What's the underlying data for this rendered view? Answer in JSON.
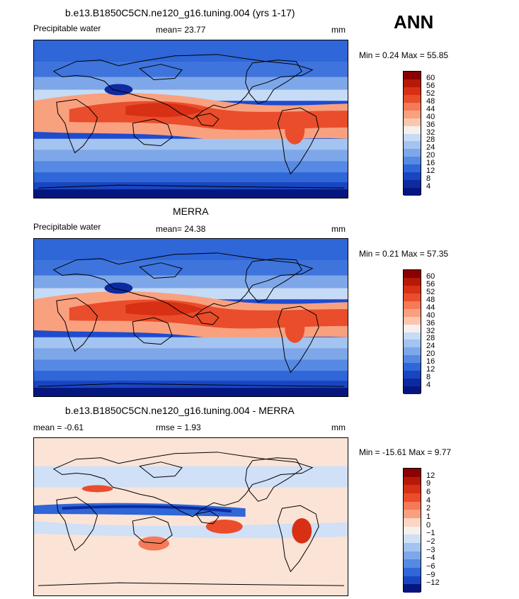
{
  "annual_label": "ANN",
  "panels": [
    {
      "title": "b.e13.B1850C5CN.ne120_g16.tuning.004 (yrs 1-17)",
      "left_label": "Precipitable water",
      "stat1": "mean=   23.77",
      "units": "mm",
      "minmax": "Min =    0.24  Max =   55.85",
      "ticks": [
        "60",
        "56",
        "52",
        "48",
        "44",
        "40",
        "36",
        "32",
        "28",
        "24",
        "20",
        "16",
        "12",
        "8",
        "4"
      ],
      "colors": [
        "#8b0000",
        "#b51a06",
        "#d73014",
        "#ea4d2b",
        "#f57a57",
        "#f9a07f",
        "#fcc6ae",
        "#f5f0ec",
        "#c6dbf5",
        "#a3c3f0",
        "#7ea7ea",
        "#5689e3",
        "#2f66d8",
        "#1946c0",
        "#0d2aa0",
        "#061680"
      ]
    },
    {
      "title": "MERRA",
      "left_label": "Precipitable water",
      "stat1": "mean=   24.38",
      "units": "mm",
      "minmax": "Min =    0.21  Max =   57.35",
      "ticks": [
        "60",
        "56",
        "52",
        "48",
        "44",
        "40",
        "36",
        "32",
        "28",
        "24",
        "20",
        "16",
        "12",
        "8",
        "4"
      ],
      "colors": [
        "#8b0000",
        "#b51a06",
        "#d73014",
        "#ea4d2b",
        "#f57a57",
        "#f9a07f",
        "#fcc6ae",
        "#f5f0ec",
        "#c6dbf5",
        "#a3c3f0",
        "#7ea7ea",
        "#5689e3",
        "#2f66d8",
        "#1946c0",
        "#0d2aa0",
        "#061680"
      ]
    },
    {
      "title": "b.e13.B1850C5CN.ne120_g16.tuning.004 - MERRA",
      "left_label": "mean =   -0.61",
      "stat1": "rmse =     1.93",
      "units": "mm",
      "minmax": "Min = -15.61  Max =    9.77",
      "ticks": [
        "12",
        "9",
        "6",
        "4",
        "2",
        "1",
        "0",
        "−1",
        "−2",
        "−3",
        "−4",
        "−6",
        "−9",
        "−12"
      ],
      "colors": [
        "#8b0000",
        "#b51a06",
        "#d73014",
        "#ea4d2b",
        "#f57a57",
        "#f9a07f",
        "#fcd6c4",
        "#f5f0ec",
        "#cfe0f7",
        "#a3c3f0",
        "#7ea7ea",
        "#5689e3",
        "#2f66d8",
        "#1946c0",
        "#061680"
      ]
    }
  ]
}
